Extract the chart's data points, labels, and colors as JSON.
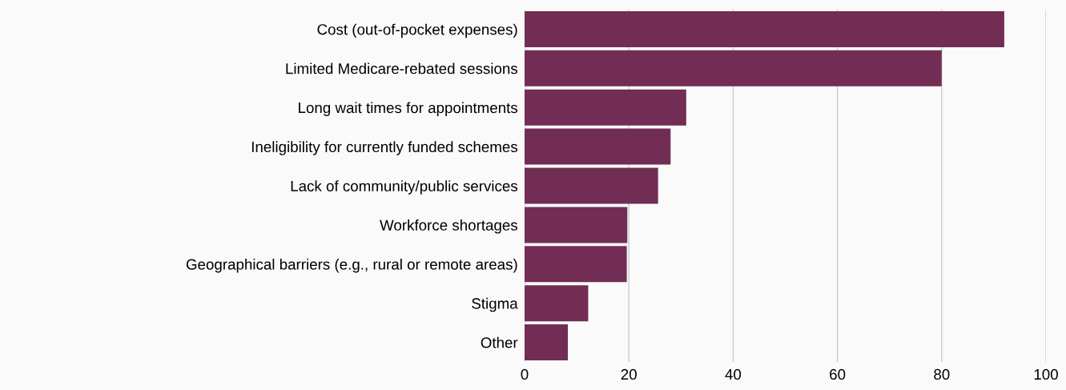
{
  "chart_data": {
    "type": "bar",
    "orientation": "horizontal",
    "categories": [
      "Cost (out-of-pocket expenses)",
      "Limited Medicare-rebated sessions",
      "Long wait times for appointments",
      "Ineligibility for currently funded schemes",
      "Lack of community/public services",
      "Workforce shortages",
      "Geographical barriers (e.g., rural or remote areas)",
      "Stigma",
      "Other"
    ],
    "values": [
      92,
      80,
      31,
      28,
      25.6,
      19.7,
      19.6,
      12.2,
      8.3
    ],
    "color": "#722d55",
    "xlim": [
      0,
      100
    ],
    "xticks": [
      0,
      20,
      40,
      60,
      80,
      100
    ],
    "grid": "x",
    "legend": false
  }
}
